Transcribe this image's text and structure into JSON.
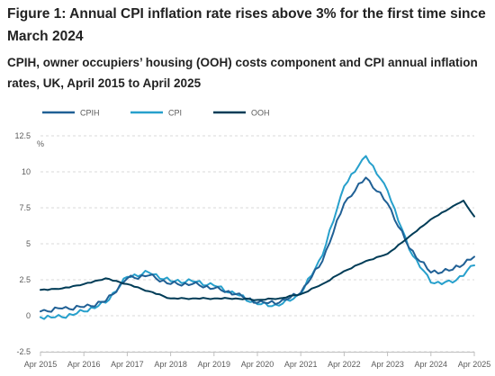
{
  "figure": {
    "title": "Figure 1: Annual CPI inflation rate rises above 3% for the first time since March 2024",
    "subtitle": "CPIH, owner occupiers’ housing (OOH) costs component and CPI annual inflation rates, UK, April 2015 to April 2025"
  },
  "chart_data": {
    "type": "line",
    "title": "",
    "ylabel": "%",
    "xlabel": "",
    "ylim": [
      -2.5,
      12.5
    ],
    "yticks": [
      -2.5,
      0,
      2.5,
      5,
      7.5,
      10,
      12.5
    ],
    "ytick_labels": [
      "-2.5",
      "0",
      "2.5",
      "5",
      "7.5",
      "10",
      "12.5"
    ],
    "xtick_labels": [
      "Apr 2015",
      "Apr 2016",
      "Apr 2017",
      "Apr 2018",
      "Apr 2019",
      "Apr 2020",
      "Apr 2021",
      "Apr 2022",
      "Apr 2023",
      "Apr 2024",
      "Apr 2025"
    ],
    "grid": "horizontal",
    "legend": "top-left",
    "x_start": "Apr 2015",
    "x_end": "Apr 2025",
    "series": [
      {
        "name": "CPIH",
        "color": "#206095",
        "anchors": [
          [
            "Apr 2015",
            0.3
          ],
          [
            "Oct 2015",
            0.5
          ],
          [
            "Apr 2016",
            0.6
          ],
          [
            "Oct 2016",
            1.0
          ],
          [
            "Apr 2017",
            2.6
          ],
          [
            "Oct 2017",
            2.8
          ],
          [
            "Apr 2018",
            2.2
          ],
          [
            "Oct 2018",
            2.2
          ],
          [
            "Apr 2019",
            1.9
          ],
          [
            "Oct 2019",
            1.5
          ],
          [
            "Apr 2020",
            0.9
          ],
          [
            "Oct 2020",
            0.9
          ],
          [
            "Apr 2021",
            1.6
          ],
          [
            "Oct 2021",
            3.8
          ],
          [
            "Apr 2022",
            7.8
          ],
          [
            "Oct 2022",
            9.6
          ],
          [
            "Apr 2023",
            7.8
          ],
          [
            "Oct 2023",
            4.7
          ],
          [
            "Apr 2024",
            3.0
          ],
          [
            "Oct 2024",
            3.2
          ],
          [
            "Apr 2025",
            4.1
          ]
        ]
      },
      {
        "name": "CPI",
        "color": "#27a0cc",
        "anchors": [
          [
            "Apr 2015",
            -0.1
          ],
          [
            "Oct 2015",
            -0.1
          ],
          [
            "Apr 2016",
            0.3
          ],
          [
            "Oct 2016",
            0.9
          ],
          [
            "Apr 2017",
            2.7
          ],
          [
            "Oct 2017",
            3.0
          ],
          [
            "Apr 2018",
            2.4
          ],
          [
            "Oct 2018",
            2.4
          ],
          [
            "Apr 2019",
            2.1
          ],
          [
            "Oct 2019",
            1.5
          ],
          [
            "Apr 2020",
            0.8
          ],
          [
            "Oct 2020",
            0.7
          ],
          [
            "Apr 2021",
            1.5
          ],
          [
            "Oct 2021",
            4.2
          ],
          [
            "Apr 2022",
            9.0
          ],
          [
            "Oct 2022",
            11.1
          ],
          [
            "Apr 2023",
            8.7
          ],
          [
            "Oct 2023",
            4.6
          ],
          [
            "Apr 2024",
            2.3
          ],
          [
            "Oct 2024",
            2.3
          ],
          [
            "Apr 2025",
            3.5
          ]
        ]
      },
      {
        "name": "OOH",
        "color": "#003c57",
        "anchors": [
          [
            "Apr 2015",
            1.8
          ],
          [
            "Oct 2015",
            1.9
          ],
          [
            "Apr 2016",
            2.2
          ],
          [
            "Oct 2016",
            2.6
          ],
          [
            "Apr 2017",
            2.2
          ],
          [
            "Oct 2017",
            1.7
          ],
          [
            "Apr 2018",
            1.2
          ],
          [
            "Oct 2018",
            1.2
          ],
          [
            "Apr 2019",
            1.2
          ],
          [
            "Oct 2019",
            1.2
          ],
          [
            "Apr 2020",
            1.1
          ],
          [
            "Oct 2020",
            1.2
          ],
          [
            "Apr 2021",
            1.5
          ],
          [
            "Oct 2021",
            2.2
          ],
          [
            "Apr 2022",
            3.1
          ],
          [
            "Oct 2022",
            3.8
          ],
          [
            "Apr 2023",
            4.3
          ],
          [
            "Oct 2023",
            5.5
          ],
          [
            "Apr 2024",
            6.7
          ],
          [
            "Oct 2024",
            7.6
          ],
          [
            "Jan 2025",
            8.0
          ],
          [
            "Apr 2025",
            6.9
          ]
        ]
      }
    ]
  }
}
